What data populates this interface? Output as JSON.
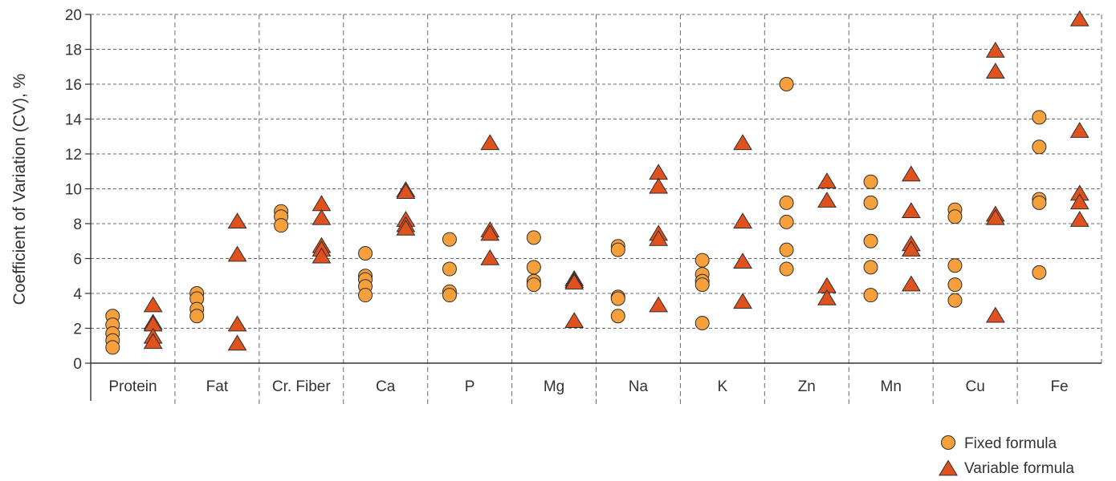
{
  "chart_data": {
    "type": "scatter",
    "ylabel": "Coefficient of Variation (CV), %",
    "ylim": [
      0,
      20
    ],
    "yticks": [
      "0",
      "2",
      "4",
      "6",
      "8",
      "10",
      "12",
      "14",
      "16",
      "18",
      "20"
    ],
    "grid": true,
    "legend_position": "bottom-right",
    "categories": [
      "Protein",
      "Fat",
      "Cr. Fiber",
      "Ca",
      "P",
      "Mg",
      "Na",
      "K",
      "Zn",
      "Mn",
      "Cu",
      "Fe"
    ],
    "series": [
      {
        "name": "Fixed formula",
        "marker": "circle",
        "color": "#f5a03a",
        "values": [
          [
            2.7,
            2.2,
            1.7,
            1.3,
            0.9
          ],
          [
            4.0,
            3.7,
            3.1,
            2.7
          ],
          [
            8.7,
            8.4,
            7.9
          ],
          [
            6.3,
            5.0,
            4.8,
            4.4,
            3.9
          ],
          [
            7.1,
            5.4,
            4.1,
            3.9
          ],
          [
            7.2,
            5.5,
            4.7,
            4.5
          ],
          [
            6.7,
            6.5,
            3.8,
            3.7,
            2.7
          ],
          [
            5.9,
            5.1,
            4.7,
            4.5,
            2.3
          ],
          [
            16.0,
            9.2,
            8.1,
            6.5,
            5.4
          ],
          [
            10.4,
            9.2,
            7.0,
            5.5,
            3.9
          ],
          [
            8.8,
            8.4,
            5.6,
            4.5,
            3.6
          ],
          [
            14.1,
            12.4,
            9.4,
            9.2,
            5.2
          ]
        ]
      },
      {
        "name": "Variable formula",
        "marker": "triangle",
        "color": "#e0521d",
        "values": [
          [
            3.4,
            2.4,
            2.3,
            1.6,
            1.3
          ],
          [
            8.2,
            6.3,
            2.3,
            1.2
          ],
          [
            9.2,
            8.4,
            6.8,
            6.6,
            6.2
          ],
          [
            10.0,
            9.9,
            8.3,
            8.0,
            7.8
          ],
          [
            12.7,
            7.7,
            7.5,
            6.1
          ],
          [
            4.9,
            4.8,
            4.7,
            2.5
          ],
          [
            11.0,
            10.2,
            7.5,
            7.2,
            3.4
          ],
          [
            12.7,
            8.2,
            5.9,
            3.6
          ],
          [
            10.5,
            9.4,
            4.5,
            3.8
          ],
          [
            10.9,
            8.8,
            6.9,
            6.6,
            4.6
          ],
          [
            18.0,
            16.8,
            8.6,
            8.4,
            2.8
          ],
          [
            19.8,
            13.4,
            9.8,
            9.3,
            8.3
          ]
        ]
      }
    ]
  }
}
